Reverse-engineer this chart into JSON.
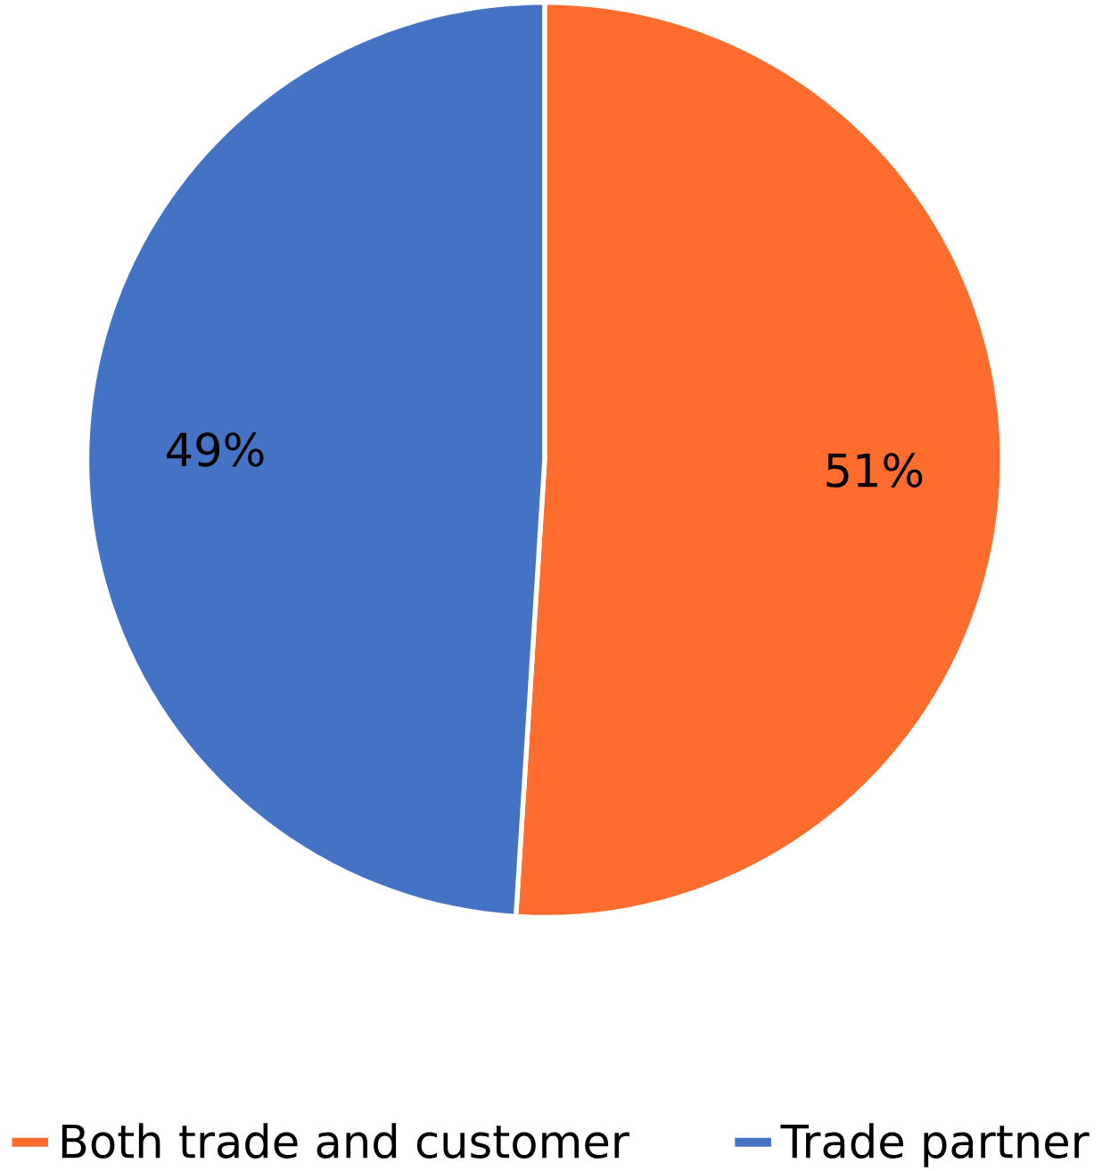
{
  "chart_data": {
    "type": "pie",
    "categories": [
      "Both trade and customer",
      "Trade partner"
    ],
    "values": [
      51,
      49
    ],
    "colors": [
      "#ff6d2e",
      "#4472c4"
    ],
    "value_labels": [
      "51%",
      "49%"
    ],
    "legend": "bottom"
  }
}
